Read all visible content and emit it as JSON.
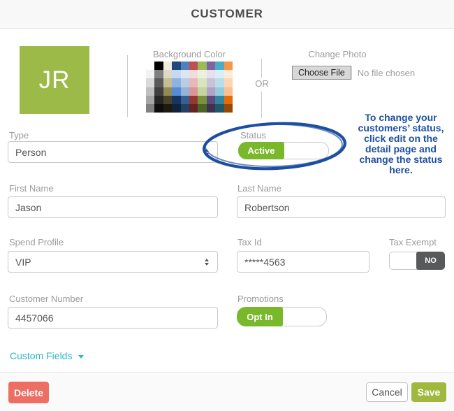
{
  "colors": {
    "avatar_green": "#9cba48",
    "toggle_green": "#79b82b",
    "save_green": "#9fb83d",
    "delete_red": "#ed6e63",
    "teal_link": "#2bb8c9",
    "annotation_blue": "#1d4fa1",
    "tax_exempt_dark": "#58595b"
  },
  "header": {
    "title": "CUSTOMER"
  },
  "avatar": {
    "initials": "JR"
  },
  "photo_section": {
    "background_color_label": "Background Color",
    "or_label": "OR",
    "change_photo_label": "Change Photo",
    "choose_file_label": "Choose File",
    "no_file_label": "No file chosen",
    "palette_rows": [
      [
        "#FFFFFF",
        "#000000",
        "#EEECE1",
        "#1F497D",
        "#4F81BD",
        "#C0504D",
        "#9BBB59",
        "#8064A2",
        "#4BACC6",
        "#F79646"
      ],
      [
        "#F2F2F2",
        "#7F7F7F",
        "#DDD9C3",
        "#C6D9F0",
        "#DCE6F2",
        "#F2DCDB",
        "#EBF1DE",
        "#E6E0EC",
        "#DBEEF4",
        "#FDEADA"
      ],
      [
        "#D9D9D9",
        "#595959",
        "#C4BD97",
        "#8DB3E2",
        "#B9CDE5",
        "#E6B9B8",
        "#D7E4BD",
        "#CCC1DA",
        "#B7DEE8",
        "#FBD5B5"
      ],
      [
        "#BFBFBF",
        "#3F3F3F",
        "#938953",
        "#548DD4",
        "#95B3D7",
        "#D99694",
        "#C3D69B",
        "#B3A2C7",
        "#93CDDD",
        "#FAC090"
      ],
      [
        "#A6A6A6",
        "#262626",
        "#494429",
        "#17365D",
        "#366092",
        "#953735",
        "#77933C",
        "#604A7B",
        "#31859C",
        "#E36C0A"
      ],
      [
        "#808080",
        "#0D0D0D",
        "#1D1B10",
        "#0F243E",
        "#244062",
        "#632423",
        "#4F6228",
        "#3F3151",
        "#205867",
        "#974807"
      ]
    ]
  },
  "annotation": {
    "text": "To change your\ncustomers’ status,\nclick edit on the\ndetail page and\nchange the status\nhere."
  },
  "form": {
    "type": {
      "label": "Type",
      "value": "Person"
    },
    "status": {
      "label": "Status",
      "value": "Active"
    },
    "first_name": {
      "label": "First Name",
      "value": "Jason"
    },
    "last_name": {
      "label": "Last Name",
      "value": "Robertson"
    },
    "spend_profile": {
      "label": "Spend Profile",
      "value": "VIP"
    },
    "tax_id": {
      "label": "Tax Id",
      "value": "*****4563"
    },
    "tax_exempt": {
      "label": "Tax Exempt",
      "value": "NO"
    },
    "customer_number": {
      "label": "Customer Number",
      "value": "4457066"
    },
    "promotions": {
      "label": "Promotions",
      "value": "Opt In"
    },
    "custom_fields": {
      "label": "Custom Fields"
    }
  },
  "footer": {
    "delete_label": "Delete",
    "cancel_label": "Cancel",
    "save_label": "Save"
  }
}
